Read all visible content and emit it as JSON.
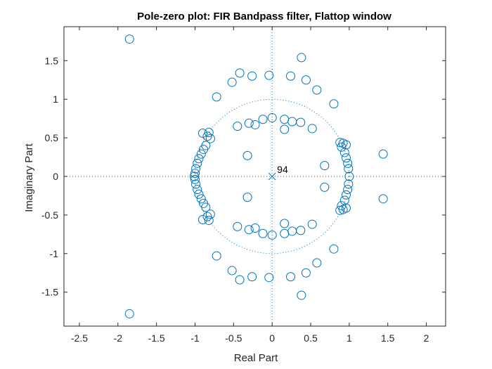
{
  "chart_data": {
    "type": "scatter",
    "title": "Pole-zero plot: FIR Bandpass filter, Flattop window",
    "xlabel": "Real Part",
    "ylabel": "Imaginary Part",
    "xlim": [
      -2.7,
      2.25
    ],
    "ylim": [
      -1.94,
      1.94
    ],
    "xticks": [
      -2.5,
      -2,
      -1.5,
      -1,
      -0.5,
      0,
      0.5,
      1,
      1.5,
      2
    ],
    "yticks": [
      -1.5,
      -1,
      -0.5,
      0,
      0.5,
      1,
      1.5
    ],
    "xtick_labels": [
      "-2.5",
      "-2",
      "-1.5",
      "-1",
      "-0.5",
      "0",
      "0.5",
      "1",
      "1.5",
      "2"
    ],
    "ytick_labels": [
      "-1.5",
      "-1",
      "-0.5",
      "0",
      "0.5",
      "1",
      "1.5"
    ],
    "grid": false,
    "unit_circle": true,
    "color": "#0072BD",
    "poles": {
      "x": [
        0
      ],
      "y": [
        0
      ],
      "marker": "x",
      "annotation": "94"
    },
    "zeros": {
      "marker": "o",
      "x": [
        -1.85,
        -1.85,
        -0.04,
        -0.04,
        0.38,
        0.38,
        0.24,
        0.24,
        0.44,
        0.44,
        0.58,
        0.58,
        -0.26,
        -0.26,
        -0.42,
        -0.42,
        -0.52,
        -0.52,
        -0.72,
        -0.72,
        0.8,
        0.8,
        1.44,
        1.44,
        0.68,
        0.68,
        -0.32,
        -0.32,
        0.0,
        0.0,
        -0.12,
        -0.12,
        0.16,
        0.16,
        -0.22,
        -0.22,
        0.26,
        0.26,
        -0.3,
        -0.3,
        0.37,
        0.37,
        0.52,
        0.52,
        -0.45,
        -0.45,
        0.16,
        0.16,
        -0.9,
        -0.9,
        -0.82,
        -0.82,
        -0.84,
        -0.84,
        -0.8,
        -0.8,
        0.88,
        0.88,
        0.92,
        0.92,
        0.96,
        0.96,
        0.9,
        0.9,
        -1.0,
        -1.0,
        -0.99,
        -0.99,
        -0.97,
        -0.97,
        -0.95,
        -0.95,
        -0.92,
        -0.92,
        -0.89,
        -0.89,
        -0.86,
        -0.86,
        0.99,
        0.99,
        0.98,
        0.98,
        0.96,
        0.96,
        0.94,
        0.94,
        -1.01,
        1.0
      ],
      "y": [
        1.78,
        -1.78,
        1.31,
        -1.31,
        1.54,
        -1.54,
        1.3,
        -1.3,
        1.25,
        -1.25,
        1.12,
        -1.12,
        1.3,
        -1.3,
        1.34,
        -1.34,
        1.22,
        -1.22,
        1.03,
        -1.03,
        0.94,
        -0.94,
        0.29,
        -0.29,
        0.14,
        -0.14,
        0.27,
        -0.27,
        0.76,
        -0.76,
        0.74,
        -0.74,
        0.74,
        -0.74,
        0.67,
        -0.67,
        0.71,
        -0.71,
        0.69,
        -0.69,
        0.7,
        -0.7,
        0.62,
        -0.62,
        0.65,
        -0.65,
        0.61,
        -0.61,
        0.56,
        -0.56,
        0.57,
        -0.57,
        0.52,
        -0.52,
        0.49,
        -0.49,
        0.44,
        -0.44,
        0.43,
        -0.43,
        0.41,
        -0.41,
        0.38,
        -0.38,
        0.04,
        -0.04,
        0.1,
        -0.1,
        0.17,
        -0.17,
        0.23,
        -0.23,
        0.29,
        -0.29,
        0.35,
        -0.35,
        0.4,
        -0.4,
        0.1,
        -0.1,
        0.17,
        -0.17,
        0.24,
        -0.24,
        0.31,
        -0.31,
        0.0,
        0.0
      ]
    }
  }
}
